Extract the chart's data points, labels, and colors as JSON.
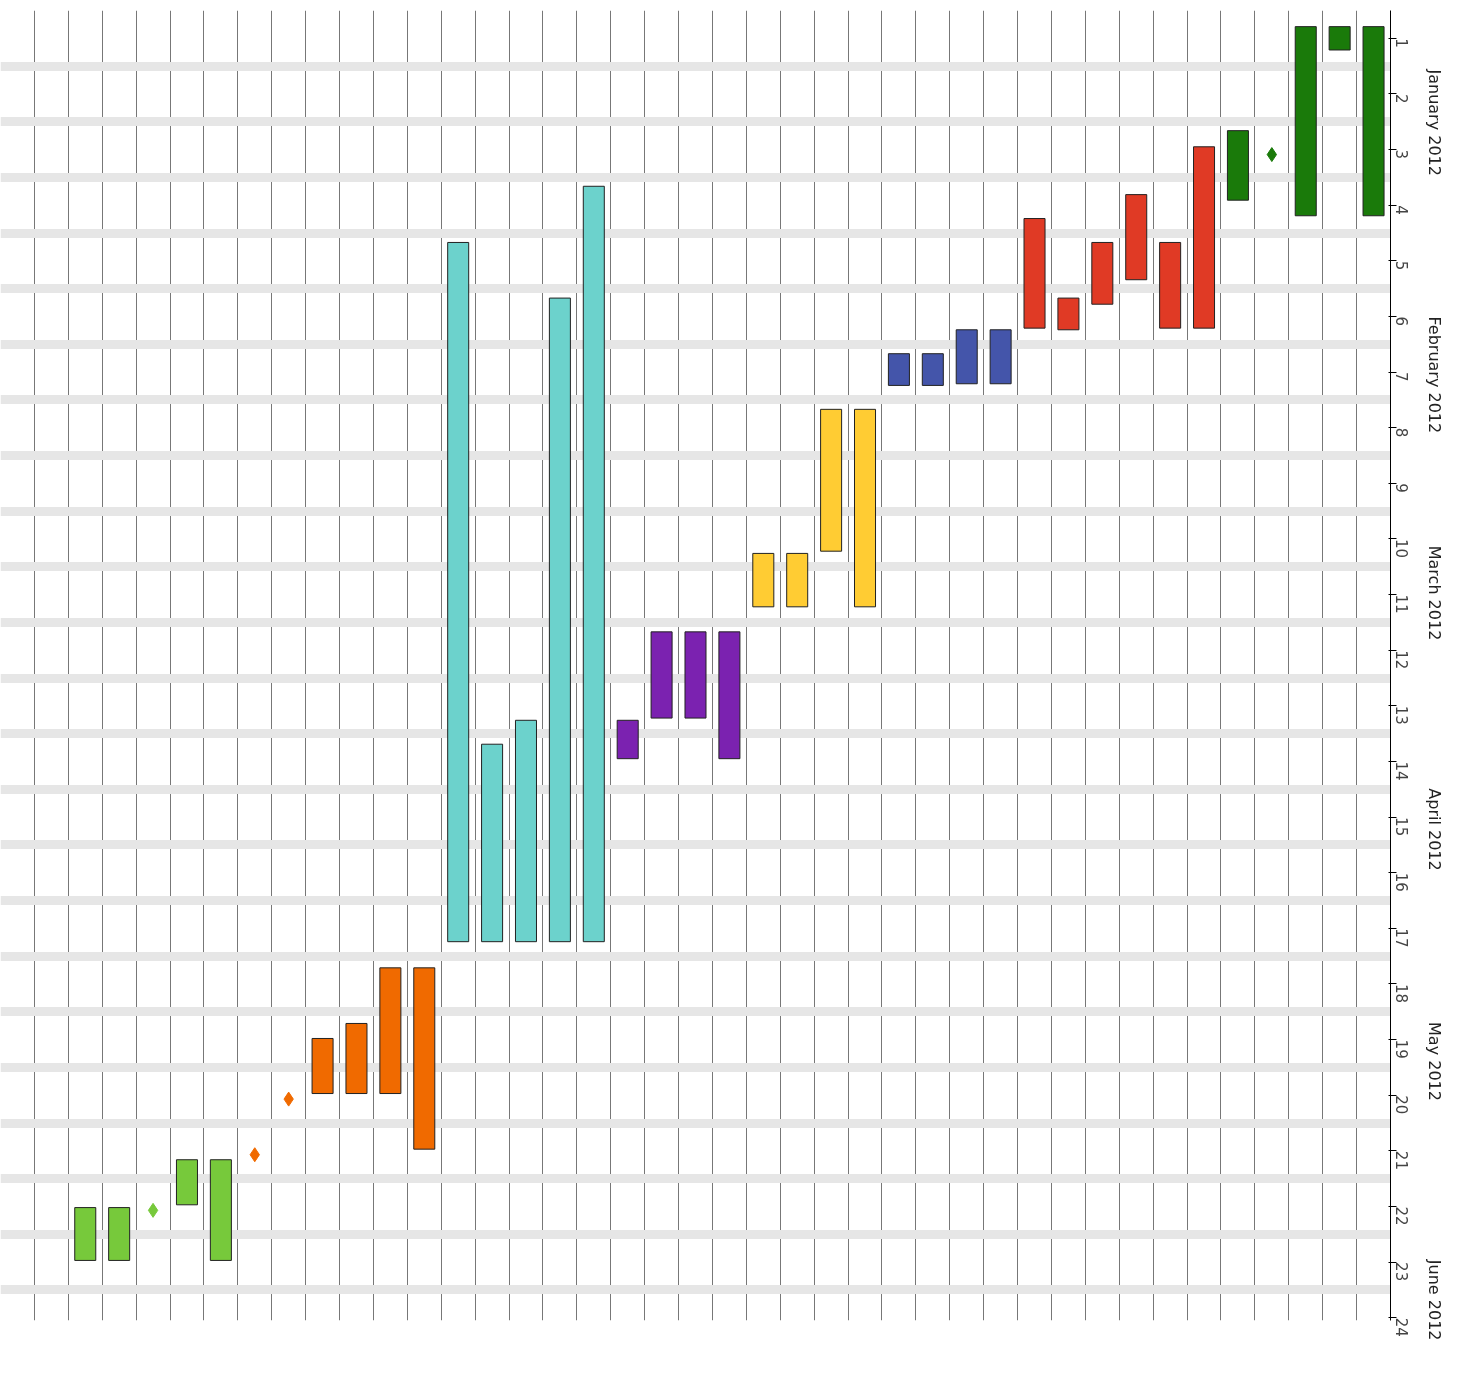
{
  "chart_data": {
    "type": "bar",
    "categories": [
      null,
      null,
      null,
      null,
      null,
      null,
      null,
      null,
      null,
      null,
      null,
      null,
      null,
      null,
      null,
      null,
      null,
      null,
      null,
      null,
      null,
      null,
      null,
      null,
      null,
      null,
      null,
      null,
      null,
      null,
      null,
      null,
      null,
      null,
      null,
      null,
      null,
      null,
      null,
      null,
      null
    ],
    "series": [
      {
        "type": "bar",
        "base": [
          null,
          null,
          22.02,
          22.02,
          null,
          21.16,
          21.16,
          null,
          null,
          18.98,
          18.71,
          17.71,
          17.71,
          4.67,
          13.69,
          13.26,
          5.67,
          3.66,
          13.26,
          11.67,
          11.67,
          11.67,
          10.26,
          10.26,
          7.67,
          7.67,
          6.67,
          6.67,
          6.24,
          6.24,
          4.24,
          5.67,
          4.67,
          3.81,
          4.67,
          2.95,
          2.66,
          null,
          0.79,
          0.79,
          0.79
        ],
        "values": [
          null,
          null,
          0.95,
          0.95,
          null,
          0.81,
          1.81,
          null,
          null,
          0.99,
          1.26,
          2.26,
          3.26,
          12.57,
          3.55,
          3.98,
          11.57,
          13.58,
          0.69,
          1.55,
          1.55,
          2.28,
          0.96,
          0.96,
          2.55,
          3.55,
          0.57,
          0.57,
          0.97,
          0.97,
          1.97,
          0.57,
          1.11,
          1.53,
          1.54,
          3.26,
          1.25,
          null,
          3.4,
          0.42,
          3.4
        ],
        "colors": [
          null,
          null,
          "#77c93b",
          "#77c93b",
          "#77c93b",
          "#77c93b",
          "#77c93b",
          "#f06a00",
          "#f06a00",
          "#f06a00",
          "#f06a00",
          "#f06a00",
          "#f06a00",
          "#6cd2cc",
          "#6cd2cc",
          "#6cd2cc",
          "#6cd2cc",
          "#6cd2cc",
          "#7b22b0",
          "#7b22b0",
          "#7b22b0",
          "#7b22b0",
          "#ffcc33",
          "#ffcc33",
          "#ffcc33",
          "#ffcc33",
          "#4455aa",
          "#4455aa",
          "#4455aa",
          "#4455aa",
          "#e03a25",
          "#e03a25",
          "#e03a25",
          "#e03a25",
          "#e03a25",
          "#e03a25",
          "#1a7a0a",
          "#1a7a0a",
          "#1a7a0a",
          "#1a7a0a",
          "#1a7a0a"
        ]
      },
      {
        "type": "scatter",
        "marker": "diamond",
        "values": [
          null,
          null,
          null,
          null,
          22.07,
          null,
          null,
          21.07,
          20.07,
          null,
          null,
          null,
          null,
          null,
          null,
          null,
          null,
          null,
          null,
          null,
          null,
          null,
          null,
          null,
          null,
          null,
          null,
          null,
          null,
          null,
          null,
          null,
          null,
          null,
          null,
          null,
          null,
          3.09,
          null,
          null,
          null
        ],
        "colors": [
          null,
          null,
          "#77c93b",
          "#77c93b",
          "#77c93b",
          "#77c93b",
          "#77c93b",
          "#f06a00",
          "#f06a00",
          "#f06a00",
          "#f06a00",
          "#f06a00",
          "#f06a00",
          "#6cd2cc",
          "#6cd2cc",
          "#6cd2cc",
          "#6cd2cc",
          "#6cd2cc",
          "#7b22b0",
          "#7b22b0",
          "#7b22b0",
          "#7b22b0",
          "#ffcc33",
          "#ffcc33",
          "#ffcc33",
          "#ffcc33",
          "#4455aa",
          "#4455aa",
          "#4455aa",
          "#4455aa",
          "#e03a25",
          "#e03a25",
          "#e03a25",
          "#e03a25",
          "#e03a25",
          "#e03a25",
          "#1a7a0a",
          "#1a7a0a",
          "#1a7a0a",
          "#1a7a0a",
          "#1a7a0a"
        ]
      }
    ],
    "ylim": [
      24.05,
      0.5
    ],
    "yticks": [
      1,
      2,
      3,
      4,
      5,
      6,
      7,
      8,
      9,
      10,
      11,
      12,
      13,
      14,
      15,
      16,
      17,
      18,
      19,
      20,
      21,
      22,
      23,
      24
    ],
    "annotations": [
      "January 2012",
      "February 2012",
      "March 2012",
      "April 2012",
      "May 2012",
      "June 2012"
    ],
    "grid": true
  }
}
